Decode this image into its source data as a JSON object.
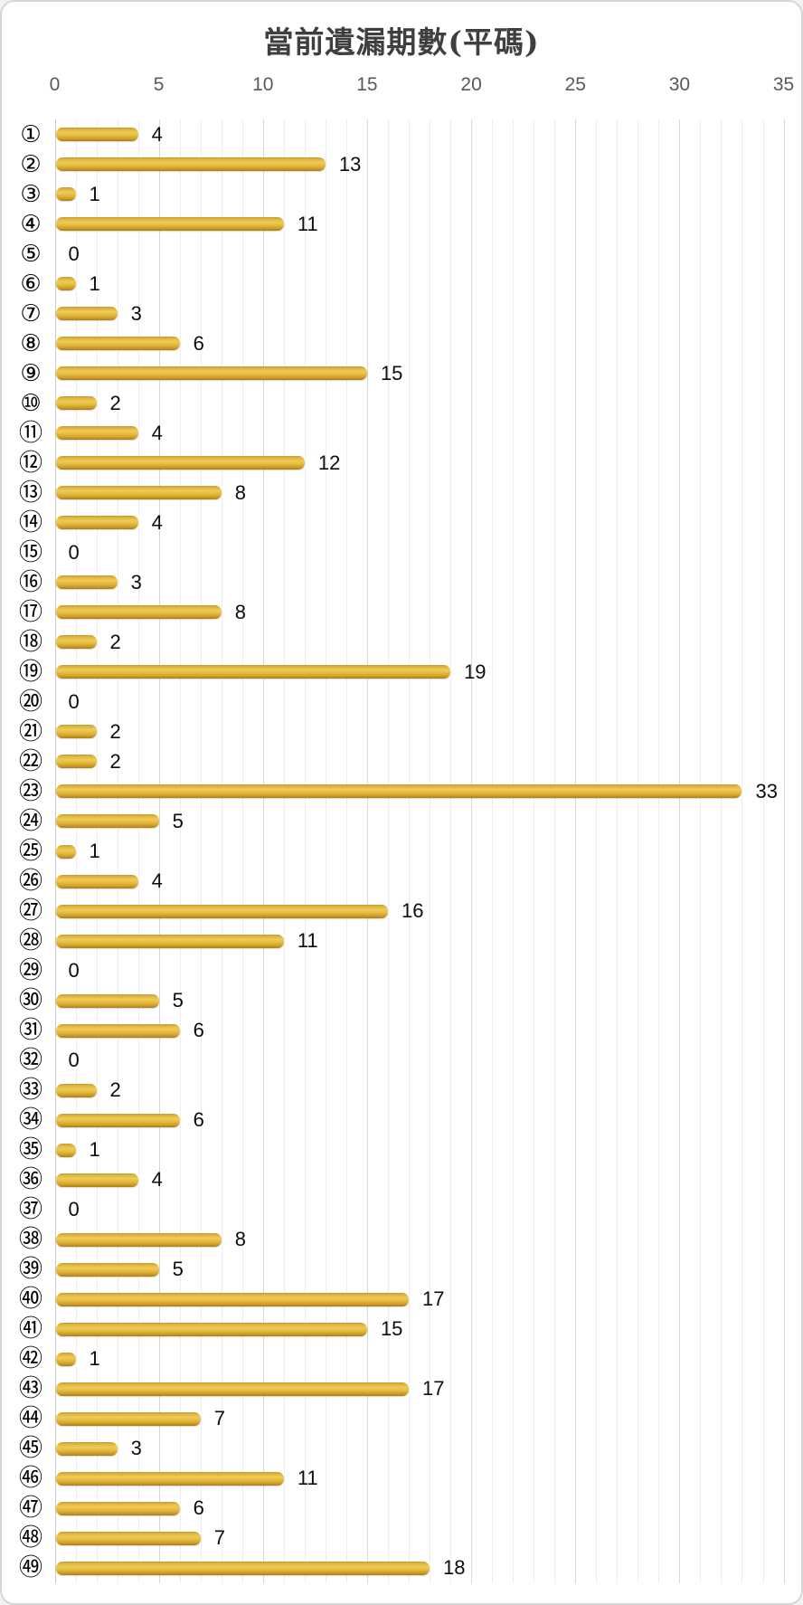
{
  "chart_data": {
    "type": "bar",
    "orientation": "horizontal",
    "title": "當前遺漏期數(平碼)",
    "categories": [
      "①",
      "②",
      "③",
      "④",
      "⑤",
      "⑥",
      "⑦",
      "⑧",
      "⑨",
      "⑩",
      "⑪",
      "⑫",
      "⑬",
      "⑭",
      "⑮",
      "⑯",
      "⑰",
      "⑱",
      "⑲",
      "⑳",
      "㉑",
      "㉒",
      "㉓",
      "㉔",
      "㉕",
      "㉖",
      "㉗",
      "㉘",
      "㉙",
      "㉚",
      "㉛",
      "㉜",
      "㉝",
      "㉞",
      "㉟",
      "㊱",
      "㊲",
      "㊳",
      "㊴",
      "㊵",
      "㊶",
      "㊷",
      "㊸",
      "㊹",
      "㊺",
      "㊻",
      "㊼",
      "㊽",
      "㊾"
    ],
    "values": [
      4,
      13,
      1,
      11,
      0,
      1,
      3,
      6,
      15,
      2,
      4,
      12,
      8,
      4,
      0,
      3,
      8,
      2,
      19,
      0,
      2,
      2,
      33,
      5,
      1,
      4,
      16,
      11,
      0,
      5,
      6,
      0,
      2,
      6,
      1,
      4,
      0,
      8,
      5,
      17,
      15,
      1,
      17,
      7,
      3,
      11,
      6,
      7,
      18
    ],
    "x_ticks": [
      0,
      5,
      10,
      15,
      20,
      25,
      30,
      35
    ],
    "xlim": [
      0,
      35
    ],
    "grid": "vertical minor every 1 unit, major every 5 units",
    "legend": "none",
    "data_labels": "shown at end of each bar",
    "colors": {
      "bar_main": "#d9a92e",
      "bar_highlight": "#eecb55",
      "bar_shadow": "#a87d1a",
      "title": "#3f3f3f",
      "tick_labels": "#595959",
      "value_labels": "#0d0d0d",
      "gridline_minor": "#ededed",
      "gridline_major": "#d8d8d8",
      "background": "#ffffff",
      "card_border": "#d6d6d6"
    }
  }
}
